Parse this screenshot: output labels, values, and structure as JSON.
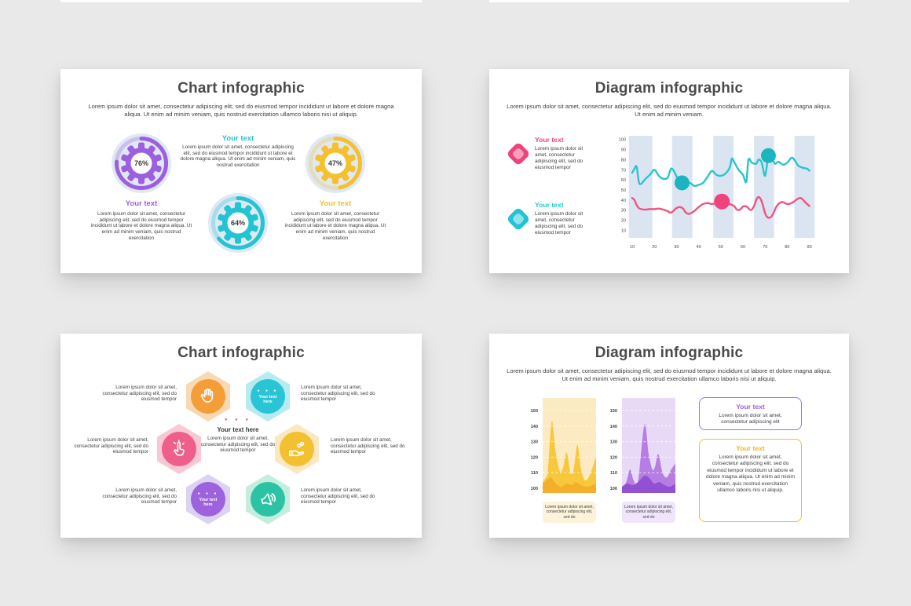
{
  "background": "#e9e9e9",
  "slides": {
    "chart_gears": {
      "title": "Chart infographic",
      "subtitle": "Lorem ipsum dolor sit amet, consectetur adipiscing elit, sed do eiusmod tempor incididunt ut labore et dolore magna aliqua. Ut enim ad minim veniam, quis nostrud exercitation ullamco laboris nisi ut aliquip.",
      "items": [
        {
          "label": "Your text",
          "percent": 76,
          "percent_text": "76%",
          "color": "#9c5fe0",
          "body": "Lorem ipsum dolor sit amet, consectetur adipiscing elit, sed do eiusmod tempor incididunt ut labore et dolore magna aliqua. Ut enim ad minim veniam, quis nostrud exercitation"
        },
        {
          "label": "Your text",
          "percent": 64,
          "percent_text": "64%",
          "color": "#22c4d4",
          "body": "Lorem ipsum dolor sit amet, consectetur adipiscing elit, sed do eiusmod tempor incididunt ut labore et dolore magna aliqua. Ut enim ad minim veniam, quis nostrud exercitation"
        },
        {
          "label": "Your text",
          "percent": 47,
          "percent_text": "47%",
          "color": "#f5c02d",
          "body": "Lorem ipsum dolor sit amet, consectetur adipiscing elit, sed do eiusmod tempor incididunt ut labore et dolore magna aliqua. Ut enim ad minim veniam, quis nostrud exercitation"
        }
      ],
      "gear_bg_circle": "#dfe8f4"
    },
    "diagram_lines": {
      "title": "Diagram infographic",
      "subtitle": "Lorem ipsum dolor sit amet, consectetur adipiscing elit, sed do eiusmod tempor incididunt ut labore et dolore magna aliqua. Ut enim ad minim veniam.",
      "legend": [
        {
          "label": "Your text",
          "color": "#f0437c",
          "body": "Lorem ipsum dolor sit amet, consectetur adipiscing elit, sed do eiusmod tempor"
        },
        {
          "label": "Your text",
          "color": "#22c4d4",
          "body": "Lorem ipsum dolor sit amet, consectetur adipiscing elit, sed do eiusmod tempor"
        }
      ]
    },
    "chart_hex": {
      "title": "Chart infographic",
      "dots": "● ● ●",
      "center": {
        "label": "Your text here",
        "body": "Lorem ipsum dolor sit amet, consectetur adipiscing elit, sed do eiusmod tempor",
        "dots_color": "#ef5f8c"
      },
      "hexes": [
        {
          "icon": "hand-palm-icon",
          "tint": "#f9d9b4",
          "circle": "#f59d38"
        },
        {
          "icon": "text",
          "label": "Your text here",
          "tint": "#b7ebf2",
          "circle": "#29c5d6"
        },
        {
          "icon": "cursor-click-icon",
          "tint": "#f8c9d4",
          "circle": "#ef5f8c"
        },
        {
          "icon": "hand-coins-icon",
          "tint": "#fbe8c0",
          "circle": "#f3c02f"
        },
        {
          "icon": "text",
          "label": "Your text here",
          "tint": "#ded2f4",
          "circle": "#9c63dd"
        },
        {
          "icon": "megaphone-icon",
          "tint": "#c3eede",
          "circle": "#2cc3a4"
        }
      ],
      "side_texts": [
        "Lorem ipsum dolor sit amet, consectetur adipiscing elit, sed do eiusmod tempor",
        "Lorem ipsum dolor sit amet, consectetur adipiscing elit, sed do eiusmod tempor",
        "Lorem ipsum dolor sit amet, consectetur adipiscing elit, sed do eiusmod tempor",
        "Lorem ipsum dolor sit amet, consectetur adipiscing elit, sed do eiusmod tempor",
        "Lorem ipsum dolor sit amet, consectetur adipiscing elit, sed do eiusmod tempor",
        "Lorem ipsum dolor sit amet, consectetur adipiscing elit, sed do eiusmod tempor"
      ]
    },
    "diagram_areas": {
      "title": "Diagram infographic",
      "subtitle": "Lorem ipsum dolor sit amet, consectetur adipiscing elit, sed do eiusmod tempor incididunt ut labore et dolore magna aliqua. Ut enim ad minim veniam, quis nostrud exercitation ullamco laboris nisi ut aliquip.",
      "captions": [
        "Lorem ipsum dolor sit amet, consectetur adipiscing elit, sed do",
        "Lorem ipsum dolor sit amet, consectetur adipiscing elit, sed do"
      ],
      "caption_bg": [
        "#fdf3da",
        "#f0e6fb"
      ],
      "boxes": [
        {
          "label": "Your text",
          "color": "#9c5fe0",
          "body": "Lorem ipsum dolor sit amet, consectetur adipiscing elit"
        },
        {
          "label": "Your text",
          "color": "#f0b42a",
          "body": "Lorem ipsum dolor sit amet, consectetur adipiscing elit, sed do eiusmod tempor incididunt ut labore et dolore magna aliqua. Ut enim ad minim veniam, quis nostrud exercitation ullamco laboris nisi ut aliquip."
        }
      ]
    }
  },
  "chart_data": [
    {
      "type": "line",
      "title": "Diagram infographic — wavy line chart",
      "xlabel": "",
      "ylabel": "",
      "x_ticks": [
        10,
        20,
        30,
        40,
        50,
        60,
        70,
        80,
        90
      ],
      "y_ticks": [
        100,
        90,
        80,
        70,
        60,
        50,
        40,
        30,
        20,
        10
      ],
      "ylim": [
        10,
        100
      ],
      "grid": false,
      "band_color": "#dbe5f2",
      "bands": [
        [
          8.5,
          19.1
        ],
        [
          28,
          37.2
        ],
        [
          46.6,
          55.7
        ],
        [
          65,
          74.1
        ],
        [
          83.3,
          92.4
        ]
      ],
      "series": [
        {
          "name": "Your text (teal)",
          "color": "#29c4cf",
          "points": [
            [
              10,
              67
            ],
            [
              11,
              71
            ],
            [
              12,
              73
            ],
            [
              13,
              58
            ],
            [
              14,
              56
            ],
            [
              16,
              61
            ],
            [
              18,
              65
            ],
            [
              20,
              70
            ],
            [
              22,
              64
            ],
            [
              24,
              61
            ],
            [
              26,
              62
            ],
            [
              27.5,
              71
            ],
            [
              29,
              68
            ],
            [
              31,
              59
            ],
            [
              32.5,
              57
            ],
            [
              34,
              55
            ],
            [
              36,
              57
            ],
            [
              38,
              54
            ],
            [
              40,
              55
            ],
            [
              42,
              57
            ],
            [
              44,
              63
            ],
            [
              46,
              69
            ],
            [
              48,
              65
            ],
            [
              50,
              64
            ],
            [
              52,
              66
            ],
            [
              54,
              72
            ],
            [
              55,
              81
            ],
            [
              56,
              78
            ],
            [
              58,
              70
            ],
            [
              60,
              65
            ],
            [
              61.5,
              58
            ],
            [
              62.5,
              80
            ],
            [
              64,
              77
            ],
            [
              66,
              76
            ],
            [
              67,
              80
            ],
            [
              68.5,
              77
            ],
            [
              70,
              64
            ],
            [
              71.5,
              84
            ],
            [
              73,
              82
            ],
            [
              74.5,
              76
            ],
            [
              76,
              78
            ],
            [
              78,
              75
            ],
            [
              80,
              77
            ],
            [
              82,
              82
            ],
            [
              83.5,
              79
            ],
            [
              85,
              74
            ],
            [
              87,
              72
            ],
            [
              89,
              71
            ],
            [
              90,
              69
            ]
          ]
        },
        {
          "name": "Your text (pink)",
          "color": "#ef5380",
          "points": [
            [
              10,
              42
            ],
            [
              11,
              40
            ],
            [
              12,
              35
            ],
            [
              13,
              32
            ],
            [
              14,
              31
            ],
            [
              16,
              30.5
            ],
            [
              18,
              31
            ],
            [
              20,
              31
            ],
            [
              22,
              31.5
            ],
            [
              24,
              30.5
            ],
            [
              26,
              29
            ],
            [
              27,
              27.5
            ],
            [
              28,
              28
            ],
            [
              29,
              30
            ],
            [
              30,
              32
            ],
            [
              31.5,
              33
            ],
            [
              33,
              31.5
            ],
            [
              34,
              28
            ],
            [
              35,
              26.5
            ],
            [
              36,
              26.5
            ],
            [
              38,
              29
            ],
            [
              40,
              33
            ],
            [
              42,
              36
            ],
            [
              44,
              37
            ],
            [
              46,
              36
            ],
            [
              48,
              37
            ],
            [
              50,
              38.5
            ],
            [
              52,
              37.5
            ],
            [
              54,
              36
            ],
            [
              56,
              34
            ],
            [
              57,
              31
            ],
            [
              58,
              30
            ],
            [
              59,
              31
            ],
            [
              60,
              33.5
            ],
            [
              61,
              34
            ],
            [
              62,
              33
            ],
            [
              63,
              30.5
            ],
            [
              64,
              30.5
            ],
            [
              65,
              34
            ],
            [
              66,
              40
            ],
            [
              67,
              43
            ],
            [
              68,
              41
            ],
            [
              69,
              35
            ],
            [
              70,
              27
            ],
            [
              71,
              23
            ],
            [
              72,
              22.5
            ],
            [
              73,
              24
            ],
            [
              74,
              28
            ],
            [
              75,
              33
            ],
            [
              76,
              36
            ],
            [
              77,
              37.5
            ],
            [
              78,
              38
            ],
            [
              80,
              36
            ],
            [
              82,
              37
            ],
            [
              84,
              40
            ],
            [
              85,
              41.5
            ],
            [
              86,
              42
            ],
            [
              87,
              40.5
            ],
            [
              88,
              38
            ],
            [
              89,
              36
            ],
            [
              90,
              34
            ]
          ]
        }
      ],
      "dots": [
        {
          "color": "#1bb5c0",
          "x": 32.5,
          "y": 57,
          "r": 9.5
        },
        {
          "color": "#1bb5c0",
          "x": 71.5,
          "y": 84,
          "r": 9.5
        },
        {
          "color": "#f0437c",
          "x": 50.5,
          "y": 38.5,
          "r": 10
        }
      ]
    },
    {
      "type": "area",
      "title": "Diagram infographic — twin area charts",
      "charts": [
        {
          "name": "yellow",
          "bg": "#fceac2",
          "main_color": "#f8c83c",
          "dark_color": "#f4ae2c",
          "y_ticks": [
            150,
            140,
            130,
            120,
            110,
            100
          ],
          "gridlines": [
            110,
            120,
            130,
            140,
            150
          ],
          "main": [
            [
              0,
              104
            ],
            [
              0.06,
              107
            ],
            [
              0.1,
              112
            ],
            [
              0.17,
              143
            ],
            [
              0.24,
              124
            ],
            [
              0.32,
              111
            ],
            [
              0.38,
              113
            ],
            [
              0.45,
              123
            ],
            [
              0.52,
              110
            ],
            [
              0.58,
              112
            ],
            [
              0.65,
              128
            ],
            [
              0.72,
              112
            ],
            [
              0.8,
              105
            ],
            [
              0.9,
              110
            ],
            [
              1,
              121
            ]
          ],
          "dark": [
            [
              0,
              103
            ],
            [
              0.1,
              106
            ],
            [
              0.15,
              107
            ],
            [
              0.25,
              103
            ],
            [
              0.35,
              101
            ],
            [
              0.45,
              103
            ],
            [
              0.55,
              102
            ],
            [
              0.62,
              104
            ],
            [
              0.72,
              102
            ],
            [
              0.85,
              101
            ],
            [
              1,
              103
            ]
          ]
        },
        {
          "name": "purple",
          "bg": "#e8daf7",
          "main_color": "#b67ee5",
          "dark_color": "#9250d2",
          "y_ticks": [
            150,
            140,
            130,
            120,
            110,
            100
          ],
          "gridlines": [
            110,
            120,
            130,
            140,
            150
          ],
          "main": [
            [
              0,
              100
            ],
            [
              0.08,
              104
            ],
            [
              0.15,
              112
            ],
            [
              0.22,
              105
            ],
            [
              0.3,
              104
            ],
            [
              0.42,
              141
            ],
            [
              0.5,
              122
            ],
            [
              0.57,
              112
            ],
            [
              0.62,
              114
            ],
            [
              0.68,
              122
            ],
            [
              0.76,
              110
            ],
            [
              0.84,
              107
            ],
            [
              0.92,
              112
            ],
            [
              1,
              116
            ]
          ],
          "dark": [
            [
              0,
              101
            ],
            [
              0.1,
              103
            ],
            [
              0.2,
              102
            ],
            [
              0.3,
              104
            ],
            [
              0.42,
              108
            ],
            [
              0.5,
              107
            ],
            [
              0.6,
              103
            ],
            [
              0.7,
              104
            ],
            [
              0.8,
              102
            ],
            [
              0.9,
              101
            ],
            [
              1,
              103
            ]
          ]
        }
      ]
    }
  ]
}
